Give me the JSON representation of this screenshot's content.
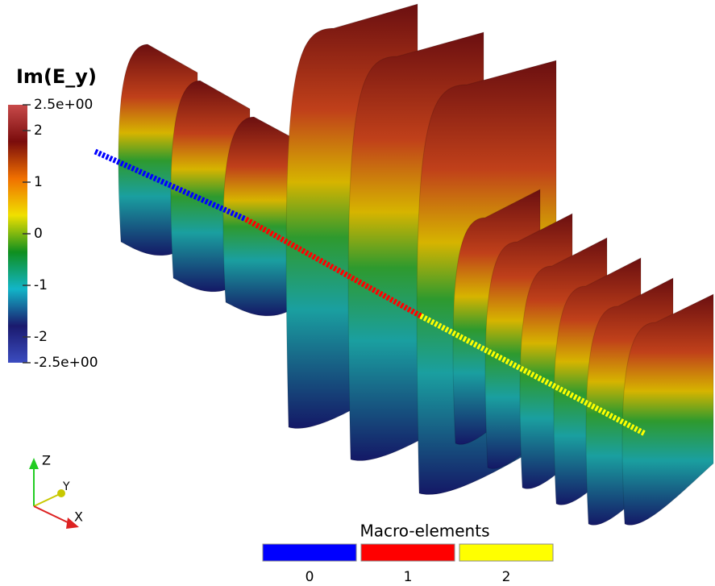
{
  "colorbar": {
    "title": "Im(E_y)",
    "range": [
      -2.5,
      2.5
    ],
    "colors": [
      "#3b4cc0",
      "#1a1a6e",
      "#12b5c8",
      "#0f8f1f",
      "#f0e000",
      "#f07000",
      "#7a0c0c",
      "#c84a4a"
    ],
    "ticks": [
      {
        "value": 2.5,
        "label": "2.5e+00"
      },
      2,
      1,
      0,
      -1,
      -2,
      {
        "value": -2.5,
        "label": "-2.5e+00"
      }
    ]
  },
  "axes": {
    "z": "Z",
    "y": "Y",
    "x": "X"
  },
  "legend": {
    "title": "Macro-elements",
    "items": [
      {
        "label": "0",
        "color": "#0000ff"
      },
      {
        "label": "1",
        "color": "#ff0000"
      },
      {
        "label": "2",
        "color": "#ffff00"
      }
    ]
  }
}
